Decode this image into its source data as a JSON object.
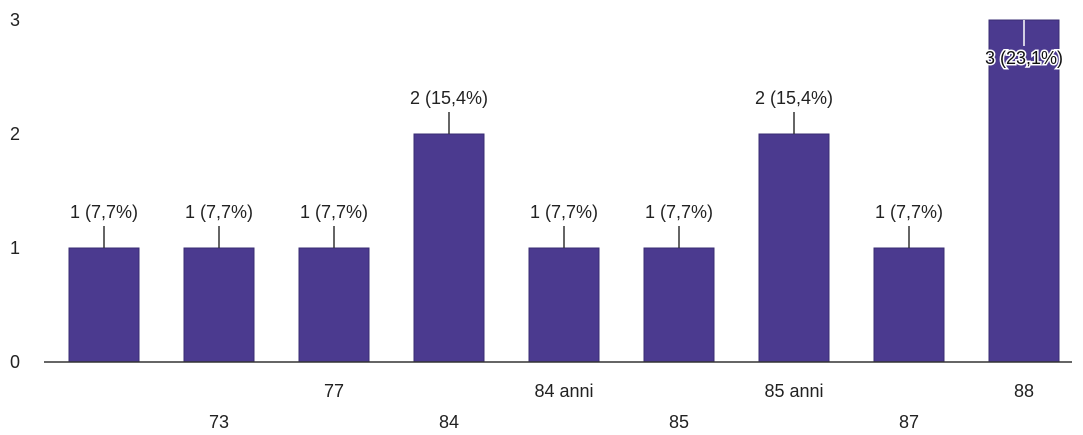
{
  "chart_data": {
    "type": "bar",
    "categories": [
      "",
      "73",
      "77",
      "84",
      "84 anni",
      "85",
      "85 anni",
      "87",
      "88"
    ],
    "values": [
      1,
      1,
      1,
      2,
      1,
      1,
      2,
      1,
      3
    ],
    "data_labels": [
      "1 (7,7%)",
      "1 (7,7%)",
      "1 (7,7%)",
      "2 (15,4%)",
      "1 (7,7%)",
      "1 (7,7%)",
      "2 (15,4%)",
      "1 (7,7%)",
      "3 (23,1%)"
    ],
    "y_ticks": [
      "0",
      "1",
      "2",
      "3"
    ],
    "ylim": [
      0,
      3
    ],
    "title": "",
    "xlabel": "",
    "ylabel": "",
    "grid": false,
    "legend": "none",
    "bar_color": "#4b3a8f"
  }
}
